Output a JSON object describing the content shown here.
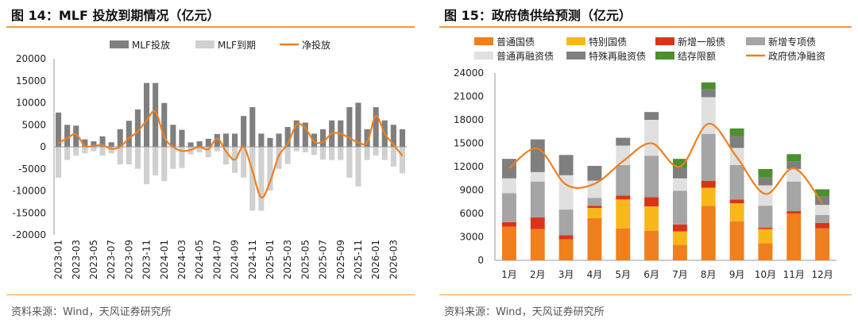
{
  "left": {
    "title": "图 14：MLF 投放到期情况（亿元）",
    "source": "资料来源：Wind，天风证券研究所",
    "chart_data": {
      "type": "bar",
      "categories": [
        "2023-01",
        "2023-02",
        "2023-03",
        "2023-04",
        "2023-05",
        "2023-06",
        "2023-07",
        "2023-08",
        "2023-09",
        "2023-10",
        "2023-11",
        "2023-12",
        "2024-01",
        "2024-02",
        "2024-03",
        "2024-04",
        "2024-05",
        "2024-06",
        "2024-07",
        "2024-08",
        "2024-09",
        "2024-10",
        "2024-11",
        "2024-12",
        "2025-01",
        "2025-02",
        "2025-03",
        "2025-04",
        "2025-05",
        "2025-06",
        "2025-07",
        "2025-08",
        "2025-09",
        "2025-10",
        "2025-11",
        "2025-12",
        "2026-01",
        "2026-02",
        "2026-03",
        "2026-04"
      ],
      "tick_labels": [
        "2023-01",
        "2023-03",
        "2023-05",
        "2023-07",
        "2023-09",
        "2023-11",
        "2024-01",
        "2024-03",
        "2024-05",
        "2024-07",
        "2024-09",
        "2024-11",
        "2025-01",
        "2025-03",
        "2025-05",
        "2025-07",
        "2025-09",
        "2025-11",
        "2026-01",
        "2026-03"
      ],
      "series": [
        {
          "name": "MLF投放",
          "kind": "bar",
          "color": "#7f7f7f",
          "values": [
            7790,
            4990,
            4810,
            1700,
            1250,
            2370,
            1030,
            4010,
            5910,
            8500,
            14500,
            14500,
            9950,
            5000,
            3870,
            1000,
            1250,
            1820,
            2900,
            3000,
            3000,
            7000,
            9000,
            3000,
            2000,
            3000,
            4500,
            6000,
            5500,
            3000,
            4000,
            6000,
            6000,
            9000,
            10000,
            4000,
            9000,
            6000,
            5000,
            4000
          ]
        },
        {
          "name": "MLF到期",
          "kind": "bar",
          "color": "#d0d0d0",
          "values": [
            -7000,
            -3000,
            -2000,
            -1500,
            -1000,
            -2000,
            -1500,
            -4000,
            -4000,
            -5000,
            -8500,
            -6500,
            -7790,
            -4990,
            -4810,
            -1700,
            -1250,
            -2370,
            -1030,
            -4010,
            -5910,
            -7000,
            -14500,
            -14500,
            -9950,
            -5000,
            -3870,
            -1000,
            -1250,
            -1820,
            -2900,
            -3000,
            -3000,
            -7000,
            -9000,
            -3000,
            -2000,
            -3000,
            -4500,
            -6000
          ]
        },
        {
          "name": "净投放",
          "kind": "line",
          "color": "#f07f1e",
          "values": [
            790,
            1990,
            2810,
            200,
            250,
            370,
            -470,
            10,
            1910,
            3500,
            6000,
            8000,
            2160,
            10,
            -940,
            -700,
            0,
            -550,
            1870,
            -1010,
            -2910,
            0,
            -5500,
            -11500,
            -7950,
            -2000,
            630,
            5000,
            4250,
            1180,
            1100,
            3000,
            3000,
            2000,
            1000,
            1000,
            7000,
            3000,
            500,
            -2000
          ]
        }
      ],
      "ylim": [
        -20000,
        20000
      ],
      "yticks": [
        -20000,
        -15000,
        -10000,
        -5000,
        0,
        5000,
        10000,
        15000,
        20000
      ],
      "legend_position": "top-center",
      "grid": false
    }
  },
  "right": {
    "title": "图 15：政府债供给预测（亿元）",
    "source": "资料来源：Wind，天风证券研究所",
    "chart_data": {
      "type": "bar",
      "stacked": true,
      "categories": [
        "1月",
        "2月",
        "3月",
        "4月",
        "5月",
        "6月",
        "7月",
        "8月",
        "9月",
        "10月",
        "11月",
        "12月"
      ],
      "series": [
        {
          "name": "普通国债",
          "kind": "bar",
          "color": "#f07f1e",
          "values": [
            4300,
            4000,
            2700,
            5400,
            4100,
            3800,
            2000,
            7000,
            5000,
            2200,
            6000,
            4100
          ]
        },
        {
          "name": "特别国债",
          "kind": "bar",
          "color": "#f9b81a",
          "values": [
            0,
            0,
            0,
            1300,
            3700,
            3100,
            1700,
            2300,
            2300,
            1800,
            0,
            0
          ]
        },
        {
          "name": "新增一般债",
          "kind": "bar",
          "color": "#d9341a",
          "values": [
            600,
            1500,
            500,
            300,
            500,
            1200,
            900,
            900,
            500,
            200,
            300,
            700
          ]
        },
        {
          "name": "新增专项债",
          "kind": "bar",
          "color": "#a5a5a5",
          "values": [
            3700,
            4600,
            3300,
            1000,
            3900,
            5300,
            4300,
            6000,
            4400,
            2800,
            3800,
            1000
          ]
        },
        {
          "name": "普通再融资债",
          "kind": "bar",
          "color": "#e0e0e0",
          "values": [
            1900,
            1200,
            4400,
            2200,
            2500,
            4600,
            1600,
            4700,
            2200,
            2600,
            1600,
            1300
          ]
        },
        {
          "name": "特殊再融资债",
          "kind": "bar",
          "color": "#7f7f7f",
          "values": [
            2500,
            4200,
            2600,
            1900,
            1000,
            1000,
            1400,
            1000,
            1500,
            1000,
            1000,
            1100
          ]
        },
        {
          "name": "结存限额",
          "kind": "bar",
          "color": "#4b8f2e",
          "values": [
            0,
            0,
            0,
            0,
            0,
            0,
            1100,
            900,
            1000,
            1100,
            900,
            900
          ]
        },
        {
          "name": "政府债净融资",
          "kind": "line",
          "color": "#f07f1e",
          "values": [
            11800,
            14300,
            9700,
            9800,
            12700,
            15000,
            12000,
            17500,
            13200,
            8500,
            11800,
            7300
          ]
        }
      ],
      "ylim": [
        0,
        24000
      ],
      "yticks": [
        0,
        3000,
        6000,
        9000,
        12000,
        15000,
        18000,
        21000,
        24000
      ],
      "legend_position": "top",
      "grid": false
    }
  }
}
